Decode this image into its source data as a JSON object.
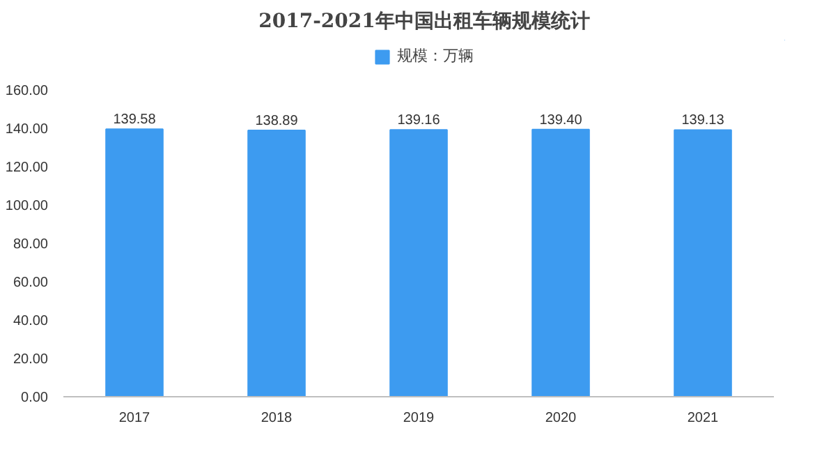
{
  "chart_data": {
    "type": "bar",
    "title": "2017-2021年中国出租车辆规模统计",
    "categories": [
      "2017",
      "2018",
      "2019",
      "2020",
      "2021"
    ],
    "series": [
      {
        "name": "规模：万辆",
        "color": "#3d9bf0",
        "values": [
          139.58,
          138.89,
          139.16,
          139.4,
          139.13
        ],
        "value_labels": [
          "139.58",
          "138.89",
          "139.16",
          "139.40",
          "139.13"
        ]
      }
    ],
    "ylim": [
      0,
      160
    ],
    "yticks": [
      {
        "value": 0,
        "label": "0.00"
      },
      {
        "value": 20,
        "label": "20.00"
      },
      {
        "value": 40,
        "label": "40.00"
      },
      {
        "value": 60,
        "label": "60.00"
      },
      {
        "value": 80,
        "label": "80.00"
      },
      {
        "value": 100,
        "label": "100.00"
      },
      {
        "value": 120,
        "label": "120.00"
      },
      {
        "value": 140,
        "label": "140.00"
      },
      {
        "value": 160,
        "label": "160.00"
      }
    ],
    "grid": false,
    "legend": "top"
  }
}
